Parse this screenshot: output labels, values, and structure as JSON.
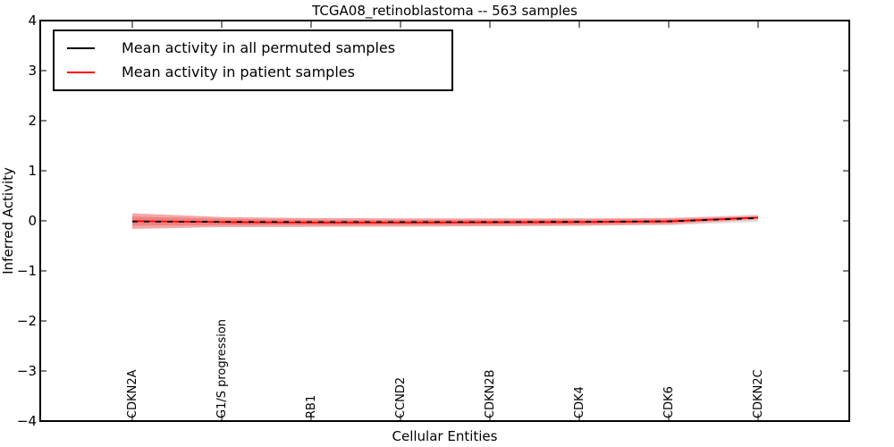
{
  "window": {
    "background": "#ffffff"
  },
  "legend": {
    "position": "upper left",
    "items": [
      {
        "label": "Mean activity in all permuted samples",
        "color": "#000000"
      },
      {
        "label": "Mean activity in patient samples",
        "color": "#ff0000"
      }
    ]
  },
  "chart_data": {
    "type": "line",
    "title": "TCGA08_retinoblastoma -- 563 samples",
    "xlabel": "Cellular Entities",
    "ylabel": "Inferred Activity",
    "ylim": [
      -4,
      4
    ],
    "ytick_values": [
      4,
      3,
      2,
      1,
      0,
      -1,
      -2,
      -3,
      -4
    ],
    "ytick_labels": [
      "4",
      "3",
      "2",
      "1",
      "0",
      "−1",
      "−2",
      "−3",
      "−4"
    ],
    "grid": false,
    "legend_position": "upper left",
    "categories": [
      "CDKN2A",
      "G1/S progression",
      "RB1",
      "CCND2",
      "CDKN2B",
      "CDK4",
      "CDK6",
      "CDKN2C"
    ],
    "series": [
      {
        "name": "Mean activity in all permuted samples",
        "color": "#000000",
        "line_style": "dashed-overlay",
        "values": [
          -0.015,
          -0.02,
          -0.025,
          -0.025,
          -0.025,
          -0.02,
          -0.01,
          0.055
        ]
      },
      {
        "name": "Mean activity in patient samples",
        "color": "#ff0000",
        "line_style": "solid",
        "values": [
          -0.005,
          -0.025,
          -0.035,
          -0.035,
          -0.03,
          -0.025,
          -0.01,
          0.065
        ]
      }
    ],
    "bands": [
      {
        "name": "permuted-samples-std-band",
        "color": "#d8d8d8",
        "opacity": 0.85,
        "upper": [
          0.04,
          0.03,
          0.025,
          0.025,
          0.025,
          0.03,
          0.055,
          0.13
        ],
        "lower": [
          -0.07,
          -0.07,
          -0.075,
          -0.075,
          -0.075,
          -0.08,
          -0.09,
          -0.02
        ]
      },
      {
        "name": "patient-samples-std-band-outer",
        "color": "#f5a6a6",
        "opacity": 1,
        "upper": [
          0.15,
          0.075,
          0.055,
          0.05,
          0.05,
          0.05,
          0.055,
          0.1
        ],
        "lower": [
          -0.16,
          -0.125,
          -0.12,
          -0.115,
          -0.11,
          -0.1,
          -0.075,
          0.025
        ]
      },
      {
        "name": "patient-samples-std-band-inner",
        "color": "#ee8282",
        "opacity": 1,
        "upper": [
          0.085,
          0.04,
          0.025,
          0.02,
          0.02,
          0.025,
          0.03,
          0.085
        ],
        "lower": [
          -0.095,
          -0.09,
          -0.09,
          -0.085,
          -0.08,
          -0.075,
          -0.05,
          0.045
        ]
      }
    ]
  }
}
